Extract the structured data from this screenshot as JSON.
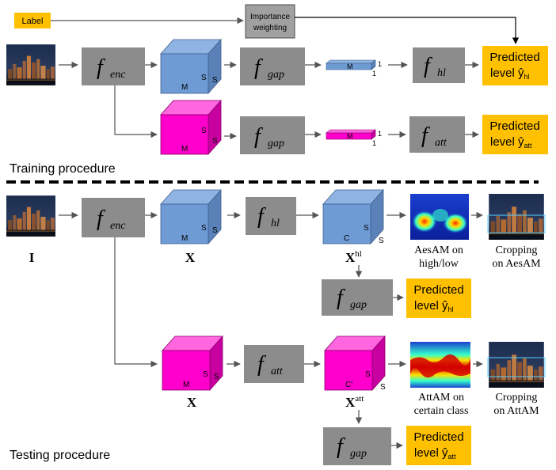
{
  "colors": {
    "encoder_box": "#8c8c8c",
    "output_box": "#ffc000",
    "cube_blue": "#6e9bd4",
    "cube_magenta": "#ff00cc",
    "separator": "#000000"
  },
  "sections": {
    "training_title": "Training procedure",
    "testing_title": "Testing procedure"
  },
  "training": {
    "label_box": "Label",
    "importance_box": "Importance weighting",
    "f_enc": {
      "f": "f",
      "sub": "enc"
    },
    "f_gap": {
      "f": "f",
      "sub": "gap"
    },
    "f_hl": {
      "f": "f",
      "sub": "hl"
    },
    "f_att": {
      "f": "f",
      "sub": "att"
    },
    "cube_dims": {
      "m": "M",
      "s1": "S",
      "s2": "S"
    },
    "slab_dims": {
      "m": "M",
      "one_a": "1",
      "one_b": "1"
    },
    "pred_hl": {
      "line1": "Predicted",
      "line2": "level ŷ",
      "sub": "hl"
    },
    "pred_att": {
      "line1": "Predicted",
      "line2": "level ŷ",
      "sub": "att"
    }
  },
  "testing": {
    "input_label": "I",
    "f_enc": {
      "f": "f",
      "sub": "enc"
    },
    "f_hl": {
      "f": "f",
      "sub": "hl"
    },
    "f_att": {
      "f": "f",
      "sub": "att"
    },
    "f_gap": {
      "f": "f",
      "sub": "gap"
    },
    "x_label": "X",
    "xhl_label": {
      "main": "X",
      "sup": "hl"
    },
    "xatt_label": {
      "main": "X",
      "sup": "att"
    },
    "cube_dims": {
      "m": "M",
      "s1": "S",
      "s2": "S"
    },
    "cube_hl_dims": {
      "c": "C",
      "s1": "S",
      "s2": "S"
    },
    "cube_att_dims": {
      "c": "C'",
      "s1": "S",
      "s2": "S"
    },
    "aesam_caption": [
      "AesAM on",
      "high/low"
    ],
    "crop_aesam_caption": [
      "Cropping",
      "on AesAM"
    ],
    "attam_caption": [
      "AttAM on",
      "certain class"
    ],
    "crop_attam_caption": [
      "Cropping",
      "on AttAM"
    ],
    "pred_hl": {
      "line1": "Predicted",
      "line2": "level ŷ",
      "sub": "hl"
    },
    "pred_att": {
      "line1": "Predicted",
      "line2": "level ŷ",
      "sub": "att"
    }
  }
}
